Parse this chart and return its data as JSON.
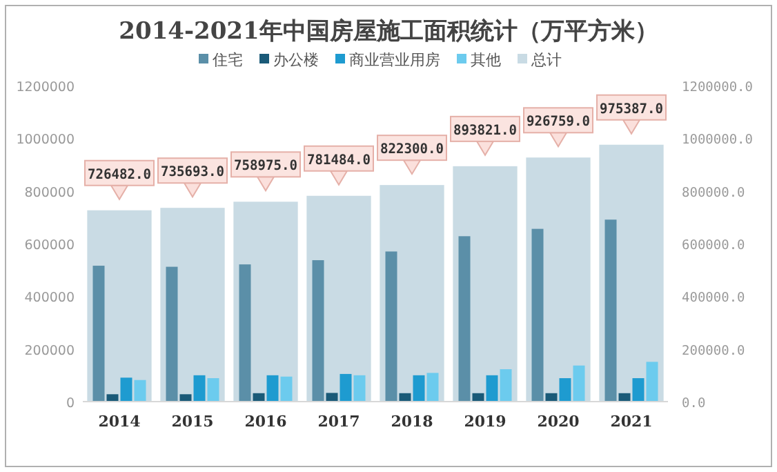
{
  "chart_data": {
    "type": "bar",
    "title": "2014-2021年中国房屋施工面积统计（万平方米）",
    "categories": [
      "2014",
      "2015",
      "2016",
      "2017",
      "2018",
      "2019",
      "2020",
      "2021"
    ],
    "series": [
      {
        "name": "住宅",
        "color": "#5b8fa8",
        "values": [
          516000,
          512000,
          521000,
          537000,
          570000,
          628000,
          656000,
          691000
        ]
      },
      {
        "name": "办公楼",
        "color": "#1a5a78",
        "values": [
          28000,
          28000,
          32000,
          33000,
          32000,
          32000,
          32000,
          32000
        ]
      },
      {
        "name": "商业营业用房",
        "color": "#1e9bd0",
        "values": [
          91000,
          100000,
          100000,
          105000,
          100000,
          100000,
          89000,
          89000
        ]
      },
      {
        "name": "其他",
        "color": "#6ccbee",
        "values": [
          82000,
          89000,
          95000,
          100000,
          109000,
          123000,
          137000,
          151000
        ]
      },
      {
        "name": "总计",
        "color": "#c9dbe4",
        "axis": "y2",
        "values": [
          726482,
          735693,
          758975,
          781484,
          822300,
          893821,
          926759,
          975387
        ],
        "value_labels": [
          "726482.0",
          "735693.0",
          "758975.0",
          "781484.0",
          "822300.0",
          "893821.0",
          "926759.0",
          "975387.0"
        ]
      }
    ],
    "ylim": [
      0,
      1200000
    ],
    "yticks": [
      0,
      200000,
      400000,
      600000,
      800000,
      1000000,
      1200000
    ],
    "y2lim": [
      0,
      1200000
    ],
    "y2ticks": [
      {
        "value": 0,
        "label": "0.0"
      },
      {
        "value": 200000,
        "label": "200000.0"
      },
      {
        "value": 400000,
        "label": "400000.0"
      },
      {
        "value": 600000,
        "label": "600000.0"
      },
      {
        "value": 800000,
        "label": "800000.0"
      },
      {
        "value": 1000000,
        "label": "1000000.0"
      },
      {
        "value": 1200000,
        "label": "1200000.0"
      }
    ],
    "legend": "top",
    "grid": false
  }
}
